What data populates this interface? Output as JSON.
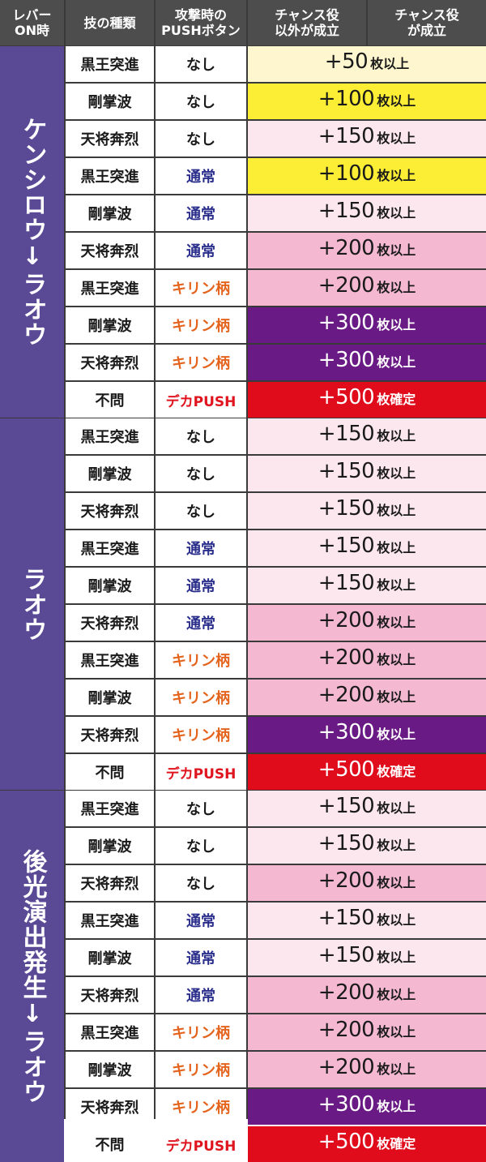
{
  "header": {
    "lever": "レバー\nON時",
    "technique": "技の種類",
    "push": "攻撃時の\nPUSHボタン",
    "no_chance": "チャンス役\n以外が成立",
    "chance": "チャンス役\nが成立"
  },
  "colors": {
    "group_bg": "#5a4a96",
    "none": "#1a1a1a",
    "normal": "#2b2f8c",
    "kirin": "#e4641e",
    "deka": "#e0141e",
    "res_cream": "#fdf6cf",
    "res_yellow": "#fcee35",
    "res_lightpink": "#fce7ef",
    "res_pink": "#f4b8d0",
    "res_purple": "#6a1a84",
    "res_red": "#e00c1c"
  },
  "groups": [
    {
      "label": "ケンシロウ↓ラオウ",
      "rows": [
        {
          "tech": "黒王突進",
          "push": "なし",
          "push_kind": "none",
          "bonus": "+50",
          "unit": "枚以上",
          "color": "cream"
        },
        {
          "tech": "剛掌波",
          "push": "なし",
          "push_kind": "none",
          "bonus": "+100",
          "unit": "枚以上",
          "color": "yellow"
        },
        {
          "tech": "天将奔烈",
          "push": "なし",
          "push_kind": "none",
          "bonus": "+150",
          "unit": "枚以上",
          "color": "lightpink"
        },
        {
          "tech": "黒王突進",
          "push": "通常",
          "push_kind": "normal",
          "bonus": "+100",
          "unit": "枚以上",
          "color": "yellow"
        },
        {
          "tech": "剛掌波",
          "push": "通常",
          "push_kind": "normal",
          "bonus": "+150",
          "unit": "枚以上",
          "color": "lightpink"
        },
        {
          "tech": "天将奔烈",
          "push": "通常",
          "push_kind": "normal",
          "bonus": "+200",
          "unit": "枚以上",
          "color": "pink"
        },
        {
          "tech": "黒王突進",
          "push": "キリン柄",
          "push_kind": "kirin",
          "bonus": "+200",
          "unit": "枚以上",
          "color": "pink"
        },
        {
          "tech": "剛掌波",
          "push": "キリン柄",
          "push_kind": "kirin",
          "bonus": "+300",
          "unit": "枚以上",
          "color": "purple"
        },
        {
          "tech": "天将奔烈",
          "push": "キリン柄",
          "push_kind": "kirin",
          "bonus": "+300",
          "unit": "枚以上",
          "color": "purple"
        },
        {
          "tech": "不問",
          "push": "デカPUSH",
          "push_kind": "deka",
          "bonus": "+500",
          "unit": "枚確定",
          "color": "red"
        }
      ]
    },
    {
      "label": "ラオウ",
      "rows": [
        {
          "tech": "黒王突進",
          "push": "なし",
          "push_kind": "none",
          "bonus": "+150",
          "unit": "枚以上",
          "color": "lightpink"
        },
        {
          "tech": "剛掌波",
          "push": "なし",
          "push_kind": "none",
          "bonus": "+150",
          "unit": "枚以上",
          "color": "lightpink"
        },
        {
          "tech": "天将奔烈",
          "push": "なし",
          "push_kind": "none",
          "bonus": "+150",
          "unit": "枚以上",
          "color": "lightpink"
        },
        {
          "tech": "黒王突進",
          "push": "通常",
          "push_kind": "normal",
          "bonus": "+150",
          "unit": "枚以上",
          "color": "lightpink"
        },
        {
          "tech": "剛掌波",
          "push": "通常",
          "push_kind": "normal",
          "bonus": "+150",
          "unit": "枚以上",
          "color": "lightpink"
        },
        {
          "tech": "天将奔烈",
          "push": "通常",
          "push_kind": "normal",
          "bonus": "+200",
          "unit": "枚以上",
          "color": "pink"
        },
        {
          "tech": "黒王突進",
          "push": "キリン柄",
          "push_kind": "kirin",
          "bonus": "+200",
          "unit": "枚以上",
          "color": "pink"
        },
        {
          "tech": "剛掌波",
          "push": "キリン柄",
          "push_kind": "kirin",
          "bonus": "+200",
          "unit": "枚以上",
          "color": "pink"
        },
        {
          "tech": "天将奔烈",
          "push": "キリン柄",
          "push_kind": "kirin",
          "bonus": "+300",
          "unit": "枚以上",
          "color": "purple"
        },
        {
          "tech": "不問",
          "push": "デカPUSH",
          "push_kind": "deka",
          "bonus": "+500",
          "unit": "枚確定",
          "color": "red"
        }
      ]
    },
    {
      "label": "後光演出発生↓ラオウ",
      "rows": [
        {
          "tech": "黒王突進",
          "push": "なし",
          "push_kind": "none",
          "bonus": "+150",
          "unit": "枚以上",
          "color": "lightpink"
        },
        {
          "tech": "剛掌波",
          "push": "なし",
          "push_kind": "none",
          "bonus": "+150",
          "unit": "枚以上",
          "color": "lightpink"
        },
        {
          "tech": "天将奔烈",
          "push": "なし",
          "push_kind": "none",
          "bonus": "+200",
          "unit": "枚以上",
          "color": "pink"
        },
        {
          "tech": "黒王突進",
          "push": "通常",
          "push_kind": "normal",
          "bonus": "+150",
          "unit": "枚以上",
          "color": "lightpink"
        },
        {
          "tech": "剛掌波",
          "push": "通常",
          "push_kind": "normal",
          "bonus": "+150",
          "unit": "枚以上",
          "color": "lightpink"
        },
        {
          "tech": "天将奔烈",
          "push": "通常",
          "push_kind": "normal",
          "bonus": "+200",
          "unit": "枚以上",
          "color": "pink"
        },
        {
          "tech": "黒王突進",
          "push": "キリン柄",
          "push_kind": "kirin",
          "bonus": "+200",
          "unit": "枚以上",
          "color": "pink"
        },
        {
          "tech": "剛掌波",
          "push": "キリン柄",
          "push_kind": "kirin",
          "bonus": "+200",
          "unit": "枚以上",
          "color": "pink"
        },
        {
          "tech": "天将奔烈",
          "push": "キリン柄",
          "push_kind": "kirin",
          "bonus": "+300",
          "unit": "枚以上",
          "color": "purple"
        },
        {
          "tech": "不問",
          "push": "デカPUSH",
          "push_kind": "deka",
          "bonus": "+500",
          "unit": "枚確定",
          "color": "red"
        }
      ]
    }
  ]
}
